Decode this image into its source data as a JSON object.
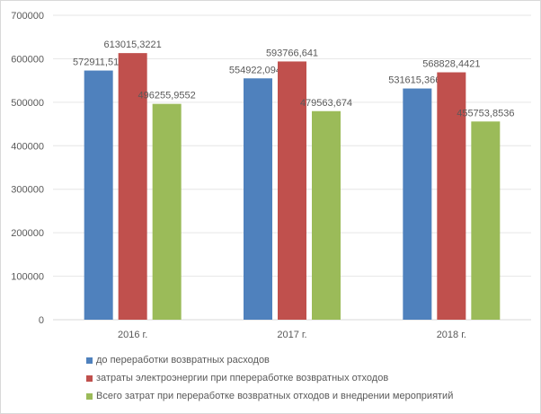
{
  "chart_data": {
    "type": "bar",
    "title": "",
    "xlabel": "",
    "ylabel": "",
    "ylim": [
      0,
      700000
    ],
    "yticks": [
      "0",
      "100000",
      "200000",
      "300000",
      "400000",
      "500000",
      "600000",
      "700000"
    ],
    "grid": true,
    "legend_position": "bottom",
    "categories": [
      "2016 г.",
      "2017 г.",
      "2018 г."
    ],
    "series": [
      {
        "name": "до переработки возвратных расходов",
        "color": "#4f81bd",
        "values": [
          572911.516,
          554922.0944,
          531615.3664
        ],
        "labels": [
          "572911,516",
          "554922,0944",
          "531615,3664"
        ]
      },
      {
        "name": "затраты электроэнергии при ппереработке возвратных отходов",
        "color": "#c0504d",
        "values": [
          613015.3221,
          593766.641,
          568828.4421
        ],
        "labels": [
          "613015,3221",
          "593766,641",
          "568828,4421"
        ]
      },
      {
        "name": "Всего затрат при переработке возвратных отходов и внедрении мероприятий",
        "color": "#9bbb59",
        "values": [
          496255.9552,
          479563.674,
          455753.8536
        ],
        "labels": [
          "496255,9552",
          "479563,674",
          "455753,8536"
        ]
      }
    ]
  }
}
